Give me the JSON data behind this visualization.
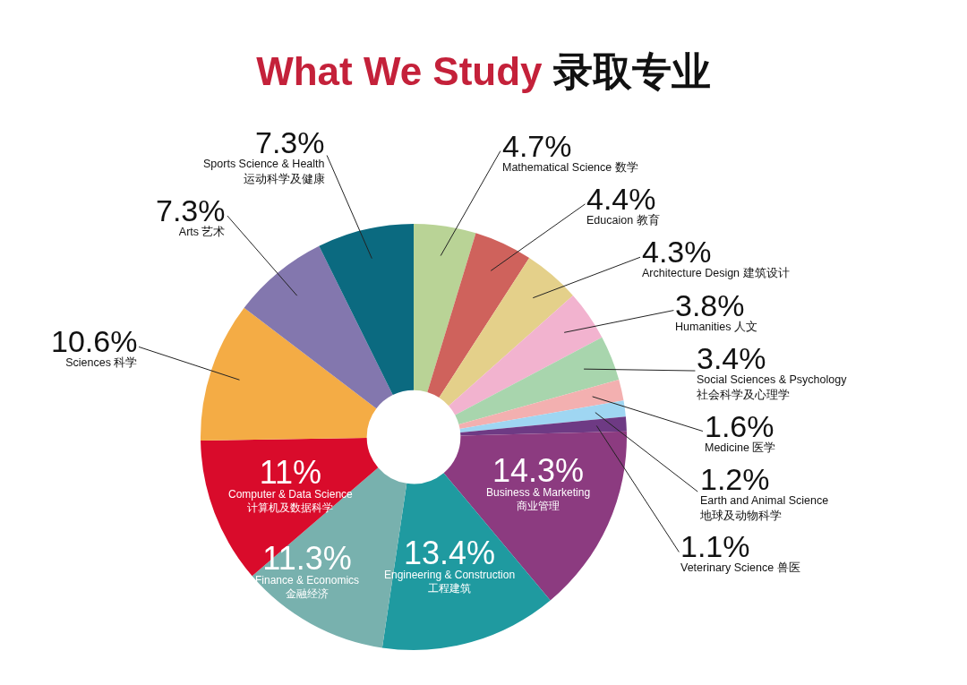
{
  "chart_data": {
    "type": "donut",
    "title": "What We Study 录取专业",
    "categories": [
      "Mathematical Science 数学",
      "Educaion 教育",
      "Architecture Design 建筑设计",
      "Humanities 人文",
      "Social Sciences & Psychology\n社会科学及心理学",
      "Medicine 医学",
      "Earth and Animal Science\n地球及动物科学",
      "Veterinary Science 兽医",
      "Business & Marketing\n商业管理",
      "Engineering & Construction\n工程建筑",
      "Finance & Economics\n金融经济",
      "Computer & Data Science\n计算机及数据科学",
      "Sciences 科学",
      "Arts 艺术",
      "Sports Science & Health\n运动科学及健康"
    ],
    "values": [
      4.7,
      4.4,
      4.3,
      3.8,
      3.4,
      1.6,
      1.2,
      1.1,
      14.3,
      13.4,
      11.3,
      11,
      10.6,
      7.3,
      7.3
    ],
    "value_labels": [
      "4.7%",
      "4.4%",
      "4.3%",
      "3.8%",
      "3.4%",
      "1.6%",
      "1.2%",
      "1.1%",
      "14.3%",
      "13.4%",
      "11.3%",
      "11%",
      "10.6%",
      "7.3%",
      "7.3%"
    ],
    "colors": [
      "#b9d396",
      "#cf625c",
      "#e4d08a",
      "#f2b3cf",
      "#a8d5ad",
      "#f3b0b0",
      "#9fd6f2",
      "#6e3a84",
      "#8c3b80",
      "#1f9aa0",
      "#78b1ae",
      "#d90b2b",
      "#f4ac45",
      "#8377ae",
      "#0b6a80"
    ]
  }
}
